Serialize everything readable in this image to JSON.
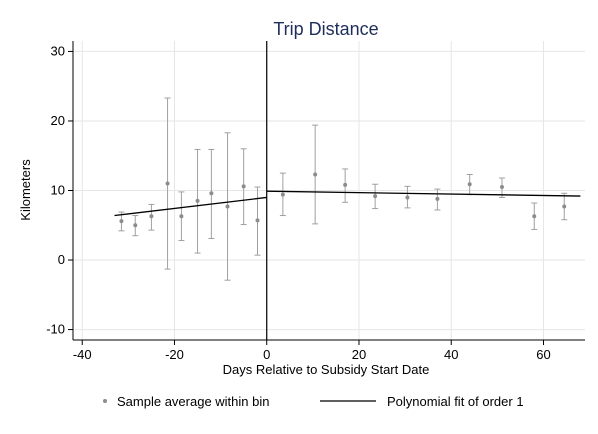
{
  "chart_data": {
    "type": "scatter",
    "title": "Trip Distance",
    "xlabel": "Days Relative to Subsidy Start Date",
    "ylabel": "Kilometers",
    "xlim": [
      -42,
      69
    ],
    "ylim": [
      -11.5,
      31.5
    ],
    "xticks": [
      -40,
      -20,
      0,
      20,
      40,
      60
    ],
    "yticks": [
      -10,
      0,
      10,
      20,
      30
    ],
    "grid": true,
    "cutoff_x": 0,
    "points": [
      {
        "x": -31.5,
        "y": 5.6,
        "lo": 4.2,
        "hi": 6.9
      },
      {
        "x": -28.5,
        "y": 5.0,
        "lo": 3.5,
        "hi": 6.4
      },
      {
        "x": -25.0,
        "y": 6.3,
        "lo": 4.3,
        "hi": 8.0
      },
      {
        "x": -21.5,
        "y": 11.0,
        "lo": -1.3,
        "hi": 23.3
      },
      {
        "x": -18.5,
        "y": 6.3,
        "lo": 2.8,
        "hi": 9.8
      },
      {
        "x": -15.0,
        "y": 8.5,
        "lo": 1.0,
        "hi": 15.9
      },
      {
        "x": -12.0,
        "y": 9.6,
        "lo": 3.1,
        "hi": 15.9
      },
      {
        "x": -8.5,
        "y": 7.7,
        "lo": -2.9,
        "hi": 18.3
      },
      {
        "x": -5.0,
        "y": 10.6,
        "lo": 5.1,
        "hi": 16.0
      },
      {
        "x": -2.0,
        "y": 5.7,
        "lo": 0.7,
        "hi": 10.5
      },
      {
        "x": 3.5,
        "y": 9.4,
        "lo": 6.4,
        "hi": 12.5
      },
      {
        "x": 10.5,
        "y": 12.3,
        "lo": 5.2,
        "hi": 19.4
      },
      {
        "x": 17.0,
        "y": 10.8,
        "lo": 8.3,
        "hi": 13.1
      },
      {
        "x": 23.5,
        "y": 9.2,
        "lo": 7.4,
        "hi": 10.9
      },
      {
        "x": 30.5,
        "y": 9.0,
        "lo": 7.5,
        "hi": 10.6
      },
      {
        "x": 37.0,
        "y": 8.8,
        "lo": 7.2,
        "hi": 10.2
      },
      {
        "x": 44.0,
        "y": 10.9,
        "lo": 9.4,
        "hi": 12.3
      },
      {
        "x": 51.0,
        "y": 10.5,
        "lo": 9.0,
        "hi": 11.8
      },
      {
        "x": 58.0,
        "y": 6.3,
        "lo": 4.4,
        "hi": 8.2
      },
      {
        "x": 64.5,
        "y": 7.7,
        "lo": 5.8,
        "hi": 9.6
      }
    ],
    "fit_segments": [
      {
        "x": [
          -33,
          0
        ],
        "y": [
          6.4,
          9.0
        ]
      },
      {
        "x": [
          0,
          68
        ],
        "y": [
          9.9,
          9.2
        ]
      }
    ],
    "series": [
      {
        "name": "Sample average within bin",
        "kind": "points"
      },
      {
        "name": "Polynomial fit of order 1",
        "kind": "line"
      }
    ],
    "legend_position": "bottom",
    "colors": {
      "points": "#8c8c8c",
      "error_bars": "#a0a0a0",
      "fit": "#000000",
      "grid": "#e6e6e6",
      "title": "#1f2d5a"
    }
  }
}
